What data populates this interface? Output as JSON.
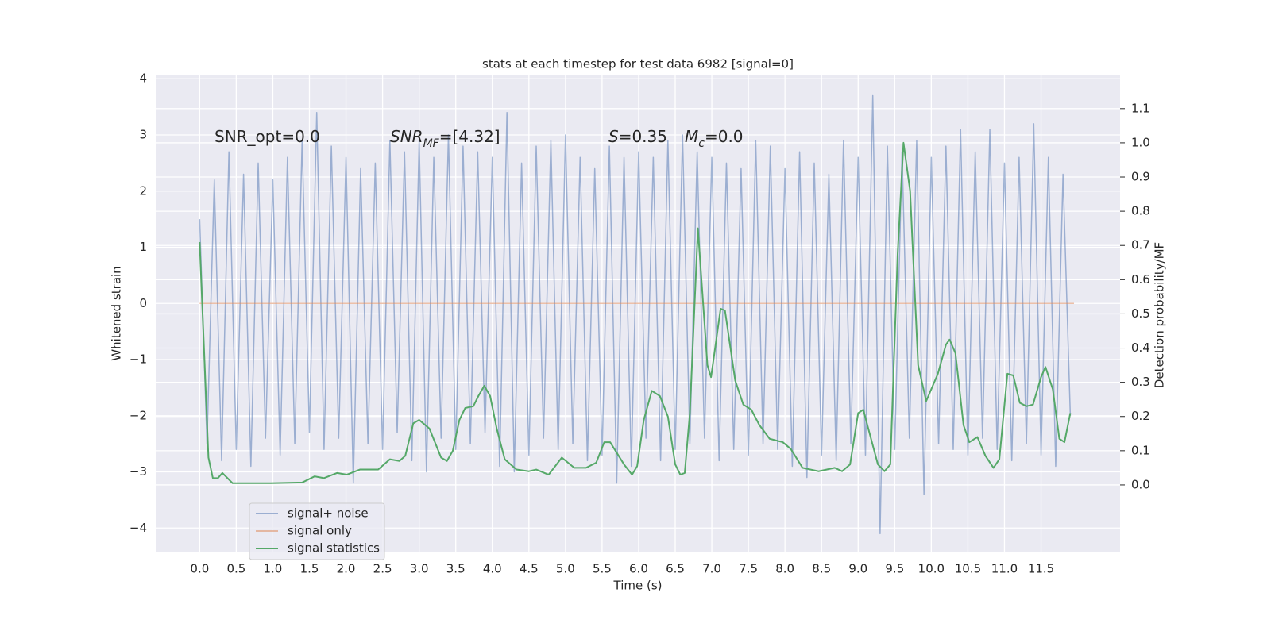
{
  "chart_data": {
    "type": "line",
    "title": "stats at each timestep for test data 6982 [signal=0]",
    "xlabel": "Time (s)",
    "ylabel": "Whitened strain",
    "y2label": "Detection probability/MF",
    "xlim": [
      -0.59,
      12.58
    ],
    "ylim": [
      -4.42,
      4.06
    ],
    "y2lim": [
      -0.195,
      1.197
    ],
    "xticks": [
      {
        "value": 0,
        "label": "0.0"
      },
      {
        "value": 0.5,
        "label": "0.5"
      },
      {
        "value": 1,
        "label": "1.0"
      },
      {
        "value": 1.5,
        "label": "1.5"
      },
      {
        "value": 2,
        "label": "2.0"
      },
      {
        "value": 2.5,
        "label": "2.5"
      },
      {
        "value": 3,
        "label": "3.0"
      },
      {
        "value": 3.5,
        "label": "3.5"
      },
      {
        "value": 4,
        "label": "4.0"
      },
      {
        "value": 4.5,
        "label": "4.5"
      },
      {
        "value": 5,
        "label": "5.0"
      },
      {
        "value": 5.5,
        "label": "5.5"
      },
      {
        "value": 6,
        "label": "6.0"
      },
      {
        "value": 6.5,
        "label": "6.5"
      },
      {
        "value": 7,
        "label": "7.0"
      },
      {
        "value": 7.5,
        "label": "7.5"
      },
      {
        "value": 8,
        "label": "8.0"
      },
      {
        "value": 8.5,
        "label": "8.5"
      },
      {
        "value": 9,
        "label": "9.0"
      },
      {
        "value": 9.5,
        "label": "9.5"
      },
      {
        "value": 10,
        "label": "10.0"
      },
      {
        "value": 10.5,
        "label": "10.5"
      },
      {
        "value": 11,
        "label": "11.0"
      },
      {
        "value": 11.5,
        "label": "11.5"
      }
    ],
    "yticks": [
      {
        "value": -4,
        "label": "−4"
      },
      {
        "value": -3,
        "label": "−3"
      },
      {
        "value": -2,
        "label": "−2"
      },
      {
        "value": -1,
        "label": "−1"
      },
      0,
      1,
      2,
      3,
      4
    ],
    "y2ticks": [
      {
        "value": 0,
        "label": "0.0"
      },
      {
        "value": 0.1,
        "label": "0.1"
      },
      {
        "value": 0.2,
        "label": "0.2"
      },
      {
        "value": 0.3,
        "label": "0.3"
      },
      {
        "value": 0.4,
        "label": "0.4"
      },
      {
        "value": 0.5,
        "label": "0.5"
      },
      {
        "value": 0.6,
        "label": "0.6"
      },
      {
        "value": 0.7,
        "label": "0.7"
      },
      {
        "value": 0.8,
        "label": "0.8"
      },
      {
        "value": 0.9,
        "label": "0.9"
      },
      {
        "value": 1.0,
        "label": "1.0"
      },
      {
        "value": 1.1,
        "label": "1.1"
      }
    ],
    "grid": true,
    "legend": "lower left",
    "annotations": [
      [
        {
          "text": "SNR_opt=0.0",
          "style": "normal"
        }
      ],
      [
        {
          "text": "SNR",
          "style": "italic"
        },
        {
          "text": "MF",
          "style": "sub"
        },
        {
          "text": "=[4.32]",
          "style": "normal"
        }
      ],
      [
        {
          "text": "S",
          "style": "italic"
        },
        {
          "text": "=0.35",
          "style": "normal"
        },
        {
          "text": "M",
          "style": "italic"
        },
        {
          "text": "c",
          "style": "sub"
        },
        {
          "text": "=0.0",
          "style": "normal"
        }
      ]
    ],
    "series": [
      {
        "name": "signal+ noise",
        "color": "#4c72b0",
        "opacity": 0.5,
        "axis": "y",
        "x": [
          0,
          0.1,
          0.2,
          0.3,
          0.4,
          0.5,
          0.6,
          0.7,
          0.8,
          0.9,
          1.0,
          1.1,
          1.2,
          1.3,
          1.4,
          1.5,
          1.6,
          1.7,
          1.8,
          1.9,
          2.0,
          2.1,
          2.2,
          2.3,
          2.4,
          2.5,
          2.6,
          2.7,
          2.8,
          2.9,
          3.0,
          3.1,
          3.2,
          3.3,
          3.4,
          3.5,
          3.6,
          3.7,
          3.8,
          3.9,
          4.0,
          4.1,
          4.2,
          4.3,
          4.4,
          4.5,
          4.6,
          4.7,
          4.8,
          4.9,
          5.0,
          5.1,
          5.2,
          5.3,
          5.4,
          5.5,
          5.6,
          5.7,
          5.8,
          5.9,
          6.0,
          6.1,
          6.2,
          6.3,
          6.4,
          6.5,
          6.6,
          6.7,
          6.8,
          6.9,
          7.0,
          7.1,
          7.2,
          7.3,
          7.4,
          7.5,
          7.6,
          7.7,
          7.8,
          7.9,
          8.0,
          8.1,
          8.2,
          8.3,
          8.4,
          8.5,
          8.6,
          8.7,
          8.8,
          8.9,
          9.0,
          9.1,
          9.2,
          9.3,
          9.4,
          9.5,
          9.6,
          9.7,
          9.8,
          9.9,
          10.0,
          10.1,
          10.2,
          10.3,
          10.4,
          10.5,
          10.6,
          10.7,
          10.8,
          10.9,
          11.0,
          11.1,
          11.2,
          11.3,
          11.4,
          11.5,
          11.6,
          11.7,
          11.8,
          11.9
        ],
        "values": [
          1.5,
          -2.5,
          2.2,
          -2.8,
          2.7,
          -2.6,
          2.3,
          -2.9,
          2.5,
          -2.4,
          2.2,
          -2.7,
          2.6,
          -2.5,
          2.9,
          -2.3,
          3.4,
          -2.6,
          2.8,
          -2.4,
          2.6,
          -3.2,
          2.4,
          -2.5,
          2.5,
          -2.6,
          2.9,
          -2.3,
          2.7,
          -2.8,
          2.9,
          -3.0,
          2.6,
          -2.4,
          3.0,
          -2.6,
          2.8,
          -2.5,
          2.7,
          -2.3,
          2.6,
          -2.9,
          3.4,
          -3.0,
          2.5,
          -2.7,
          2.8,
          -2.4,
          2.9,
          -2.6,
          3.0,
          -2.5,
          2.6,
          -2.8,
          2.4,
          -2.7,
          2.8,
          -3.2,
          2.6,
          -2.9,
          2.7,
          -2.4,
          2.6,
          -2.8,
          2.9,
          -2.6,
          3.0,
          -2.5,
          2.7,
          -2.4,
          2.6,
          -2.8,
          2.5,
          -2.6,
          2.4,
          -2.7,
          2.9,
          -2.5,
          2.8,
          -2.6,
          2.4,
          -2.9,
          2.7,
          -3.1,
          2.5,
          -2.7,
          2.3,
          -2.8,
          2.9,
          -2.5,
          2.6,
          -2.7,
          3.7,
          -4.1,
          2.8,
          -2.6,
          2.7,
          -2.4,
          2.9,
          -3.4,
          2.6,
          -2.5,
          2.8,
          -2.6,
          3.1,
          -2.7,
          2.7,
          -2.4,
          3.1,
          -2.6,
          2.5,
          -2.8,
          2.6,
          -2.5,
          3.2,
          -2.7,
          2.6,
          -2.9,
          2.3,
          -2.0
        ]
      },
      {
        "name": "signal only",
        "color": "#dd8452",
        "opacity": 0.5,
        "axis": "y",
        "x": [
          0,
          11.95
        ],
        "values": [
          0,
          0
        ]
      },
      {
        "name": "signal statistics",
        "color": "#55a868",
        "opacity": 1,
        "axis": "y2",
        "x": [
          0,
          0.12,
          0.18,
          0.25,
          0.31,
          0.45,
          0.64,
          0.97,
          1.4,
          1.57,
          1.7,
          1.88,
          2.01,
          2.19,
          2.44,
          2.6,
          2.73,
          2.81,
          2.92,
          3.0,
          3.14,
          3.3,
          3.38,
          3.46,
          3.55,
          3.63,
          3.74,
          3.81,
          3.89,
          3.97,
          4.06,
          4.17,
          4.33,
          4.5,
          4.6,
          4.77,
          4.95,
          5.12,
          5.28,
          5.42,
          5.53,
          5.61,
          5.8,
          5.91,
          5.98,
          6.07,
          6.18,
          6.29,
          6.4,
          6.5,
          6.57,
          6.63,
          6.7,
          6.81,
          6.94,
          6.99,
          7.12,
          7.18,
          7.32,
          7.43,
          7.54,
          7.65,
          7.79,
          7.97,
          8.08,
          8.24,
          8.46,
          8.68,
          8.78,
          8.89,
          9.0,
          9.07,
          9.27,
          9.36,
          9.44,
          9.54,
          9.62,
          9.71,
          9.82,
          9.93,
          10.09,
          10.2,
          10.25,
          10.33,
          10.44,
          10.52,
          10.63,
          10.74,
          10.85,
          10.93,
          11.04,
          11.12,
          11.21,
          11.3,
          11.39,
          11.5,
          11.56,
          11.66,
          11.75,
          11.82,
          11.9
        ],
        "values": [
          0.71,
          0.08,
          0.02,
          0.02,
          0.035,
          0.005,
          0.005,
          0.005,
          0.007,
          0.025,
          0.02,
          0.035,
          0.03,
          0.045,
          0.045,
          0.075,
          0.07,
          0.085,
          0.18,
          0.19,
          0.165,
          0.08,
          0.07,
          0.1,
          0.19,
          0.225,
          0.23,
          0.26,
          0.29,
          0.26,
          0.165,
          0.075,
          0.045,
          0.04,
          0.045,
          0.03,
          0.08,
          0.05,
          0.05,
          0.065,
          0.125,
          0.125,
          0.06,
          0.03,
          0.055,
          0.19,
          0.275,
          0.26,
          0.2,
          0.06,
          0.03,
          0.035,
          0.21,
          0.75,
          0.35,
          0.315,
          0.515,
          0.51,
          0.305,
          0.235,
          0.22,
          0.175,
          0.135,
          0.125,
          0.105,
          0.05,
          0.04,
          0.05,
          0.04,
          0.06,
          0.21,
          0.22,
          0.06,
          0.04,
          0.06,
          0.675,
          1.0,
          0.86,
          0.35,
          0.245,
          0.325,
          0.41,
          0.425,
          0.385,
          0.175,
          0.125,
          0.14,
          0.085,
          0.05,
          0.075,
          0.325,
          0.32,
          0.24,
          0.23,
          0.235,
          0.315,
          0.345,
          0.28,
          0.135,
          0.125,
          0.21
        ]
      }
    ]
  }
}
